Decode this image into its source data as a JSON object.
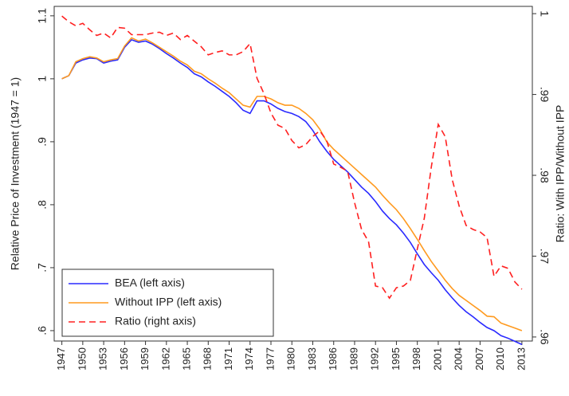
{
  "chart_data": {
    "type": "line",
    "y_label": "Relative Price of Investment (1947 = 1)",
    "y2_label": "Ratio: With IPP/Without IPP",
    "x": [
      1947,
      1948,
      1949,
      1950,
      1951,
      1952,
      1953,
      1954,
      1955,
      1956,
      1957,
      1958,
      1959,
      1960,
      1961,
      1962,
      1963,
      1964,
      1965,
      1966,
      1967,
      1968,
      1969,
      1970,
      1971,
      1972,
      1973,
      1974,
      1975,
      1976,
      1977,
      1978,
      1979,
      1980,
      1981,
      1982,
      1983,
      1984,
      1985,
      1986,
      1987,
      1988,
      1989,
      1990,
      1991,
      1992,
      1993,
      1994,
      1995,
      1996,
      1997,
      1998,
      1999,
      2000,
      2001,
      2002,
      2003,
      2004,
      2005,
      2006,
      2007,
      2008,
      2009,
      2010,
      2011,
      2012,
      2013
    ],
    "series": [
      {
        "name": "BEA (left axis)",
        "color": "#2a2aff",
        "line_style": "solid",
        "values": [
          1.0,
          1.005,
          1.025,
          1.03,
          1.033,
          1.032,
          1.025,
          1.028,
          1.03,
          1.05,
          1.062,
          1.058,
          1.06,
          1.055,
          1.048,
          1.04,
          1.033,
          1.025,
          1.018,
          1.008,
          1.003,
          0.995,
          0.988,
          0.98,
          0.972,
          0.962,
          0.95,
          0.945,
          0.965,
          0.965,
          0.96,
          0.953,
          0.948,
          0.945,
          0.94,
          0.932,
          0.918,
          0.9,
          0.885,
          0.872,
          0.862,
          0.852,
          0.84,
          0.828,
          0.818,
          0.805,
          0.79,
          0.778,
          0.768,
          0.755,
          0.74,
          0.722,
          0.705,
          0.692,
          0.68,
          0.665,
          0.652,
          0.64,
          0.63,
          0.622,
          0.613,
          0.605,
          0.6,
          0.592,
          0.588,
          0.583,
          0.578
        ]
      },
      {
        "name": "Without IPP (left axis)",
        "color": "#ff9a1f",
        "line_style": "solid",
        "values": [
          1.0,
          1.005,
          1.027,
          1.032,
          1.035,
          1.033,
          1.027,
          1.03,
          1.032,
          1.052,
          1.065,
          1.06,
          1.063,
          1.057,
          1.05,
          1.043,
          1.036,
          1.028,
          1.022,
          1.012,
          1.008,
          1.0,
          0.993,
          0.985,
          0.978,
          0.968,
          0.958,
          0.955,
          0.972,
          0.972,
          0.968,
          0.962,
          0.958,
          0.958,
          0.953,
          0.945,
          0.935,
          0.92,
          0.9,
          0.888,
          0.878,
          0.868,
          0.858,
          0.848,
          0.838,
          0.828,
          0.815,
          0.803,
          0.792,
          0.778,
          0.762,
          0.745,
          0.727,
          0.71,
          0.695,
          0.68,
          0.667,
          0.656,
          0.648,
          0.64,
          0.632,
          0.623,
          0.622,
          0.612,
          0.608,
          0.604,
          0.6
        ]
      },
      {
        "name": "Ratio (right axis)",
        "color": "#ff2020",
        "line_style": "dashed",
        "axis": "y2",
        "values": [
          0.9997,
          0.999,
          0.9985,
          0.9988,
          0.998,
          0.9973,
          0.9976,
          0.997,
          0.9983,
          0.9982,
          0.9974,
          0.9974,
          0.9974,
          0.9976,
          0.9977,
          0.9973,
          0.9976,
          0.9968,
          0.9973,
          0.9966,
          0.9959,
          0.9949,
          0.9952,
          0.9954,
          0.9949,
          0.9949,
          0.9953,
          0.9963,
          0.992,
          0.9901,
          0.9877,
          0.9862,
          0.9858,
          0.9843,
          0.9834,
          0.9838,
          0.9848,
          0.9855,
          0.9843,
          0.9814,
          0.981,
          0.9805,
          0.9766,
          0.9733,
          0.9718,
          0.9663,
          0.9661,
          0.9648,
          0.9661,
          0.9663,
          0.967,
          0.9709,
          0.9747,
          0.981,
          0.9863,
          0.9848,
          0.9795,
          0.9762,
          0.9738,
          0.9733,
          0.973,
          0.9723,
          0.9675,
          0.9688,
          0.9685,
          0.9668,
          0.9659
        ]
      }
    ],
    "xlim": [
      1945.9,
      2014.5
    ],
    "xticks": [
      1947,
      1950,
      1953,
      1956,
      1959,
      1962,
      1965,
      1968,
      1971,
      1974,
      1977,
      1980,
      1983,
      1986,
      1989,
      1992,
      1995,
      1998,
      2001,
      2004,
      2007,
      2010,
      2013
    ],
    "ylim": [
      0.5835,
      1.115
    ],
    "yticks": [
      {
        "value": 0.6,
        "label": ".6"
      },
      {
        "value": 0.7,
        "label": ".7"
      },
      {
        "value": 0.8,
        "label": ".8"
      },
      {
        "value": 0.9,
        "label": ".9"
      },
      1,
      1.1
    ],
    "y2lim": [
      0.9595,
      1.0009
    ],
    "y2ticks": [
      {
        "value": 0.96,
        "label": ".96"
      },
      {
        "value": 0.97,
        "label": ".97"
      },
      {
        "value": 0.98,
        "label": ".98"
      },
      {
        "value": 0.99,
        "label": ".99"
      },
      1
    ],
    "legend": "lower left"
  }
}
